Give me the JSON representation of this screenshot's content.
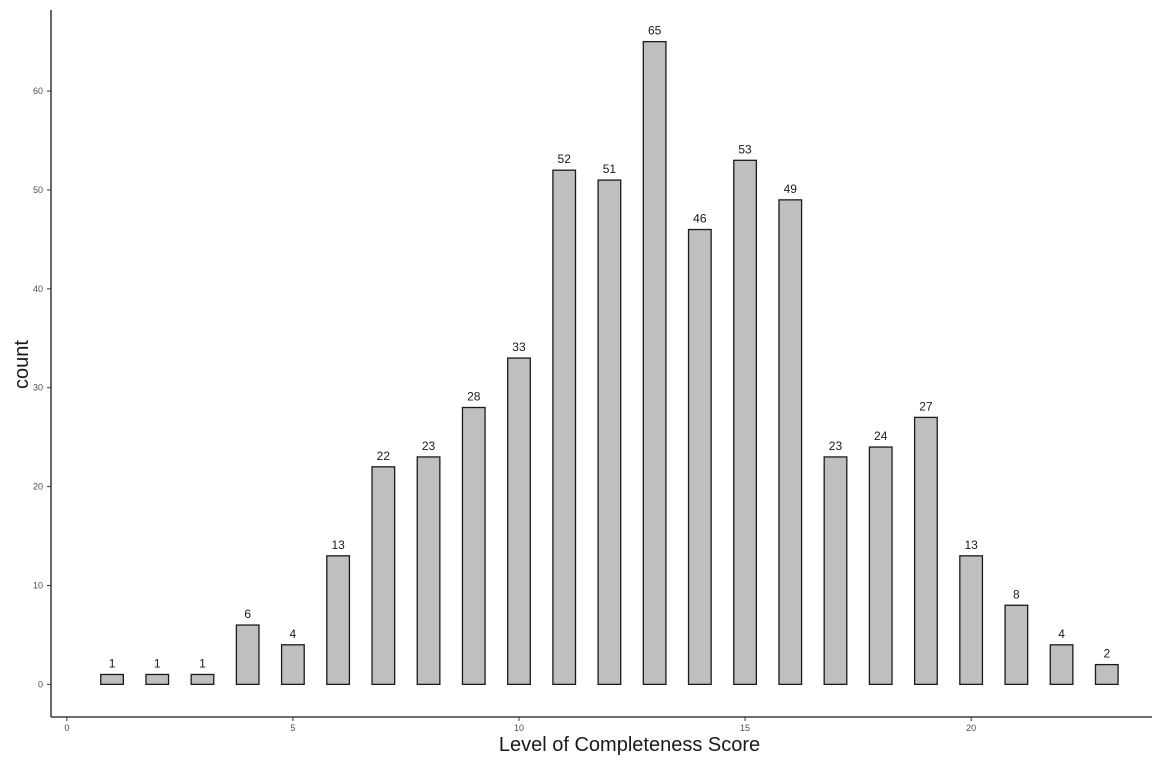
{
  "chart_data": {
    "type": "bar",
    "title": "",
    "xlabel": "Level of Completeness Score",
    "ylabel": "count",
    "x": [
      1,
      2,
      3,
      4,
      5,
      6,
      7,
      8,
      9,
      10,
      11,
      12,
      13,
      14,
      15,
      16,
      17,
      18,
      19,
      20,
      21,
      22,
      23
    ],
    "values": [
      1,
      1,
      1,
      6,
      4,
      13,
      22,
      23,
      28,
      33,
      52,
      51,
      65,
      46,
      53,
      49,
      23,
      24,
      27,
      13,
      8,
      4,
      2
    ],
    "xlim": [
      -0.35,
      24.0
    ],
    "ylim": [
      -3.3,
      68.2
    ],
    "xticks": [
      0,
      5,
      10,
      15,
      20
    ],
    "yticks": [
      0,
      10,
      20,
      30,
      40,
      50,
      60
    ],
    "bar_color": "#bfbfbf",
    "bar_outline_color": "#1a1a1a",
    "grid": false,
    "legend": "none"
  }
}
